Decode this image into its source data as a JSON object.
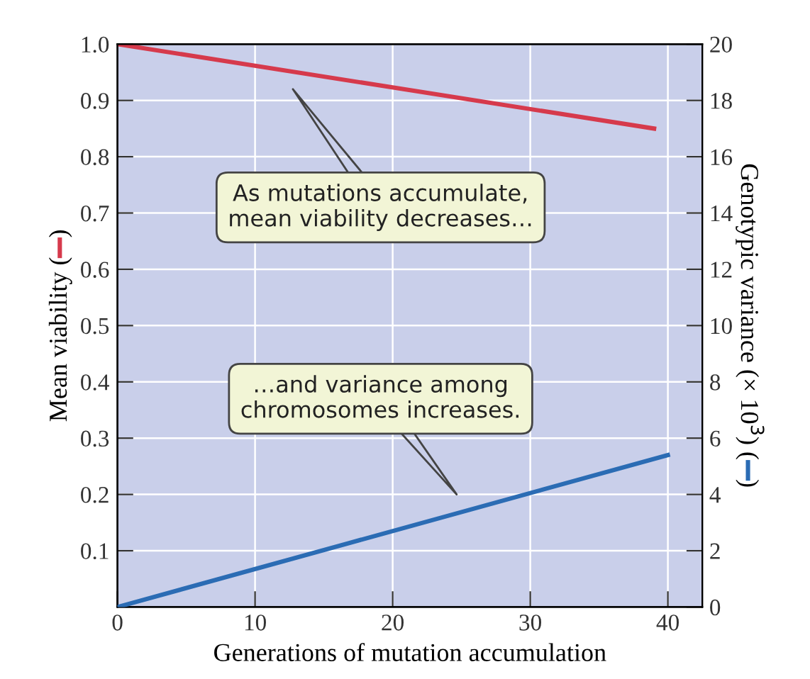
{
  "chart_data": {
    "type": "line",
    "xlabel": "Generations of mutation accumulation",
    "ylabel": "Mean viability (   )",
    "y2label": "Genotypic variance (× 10$^{3}$) (   )",
    "series": [
      {
        "color": "#d63a4c",
        "x": [
          0,
          39
        ],
        "values": [
          1.0,
          0.85
        ]
      },
      {
        "color": "#2b6cb4",
        "x": [
          0,
          40
        ],
        "values": [
          0,
          5.4
        ],
        "axis": "y2"
      }
    ],
    "xlim": [
      0,
      42.5
    ],
    "xticks": [
      0,
      10,
      20,
      30,
      40
    ],
    "ylim": [
      0,
      1.0
    ],
    "yticks": [
      0.1,
      0.2,
      0.3,
      0.4,
      0.5,
      0.6,
      0.7,
      0.8,
      0.9,
      {
        "value": 1.0,
        "label": "1.0"
      }
    ],
    "y2lim": [
      0,
      20
    ],
    "y2ticks": [
      0,
      2,
      4,
      6,
      8,
      10,
      12,
      14,
      16,
      18,
      20
    ],
    "grid": true,
    "marker": "none",
    "line_style": "solid",
    "annotations": [
      "As mutations accumulate,\nmean viability decreases…",
      "…and variance among\nchromosomes increases."
    ]
  }
}
